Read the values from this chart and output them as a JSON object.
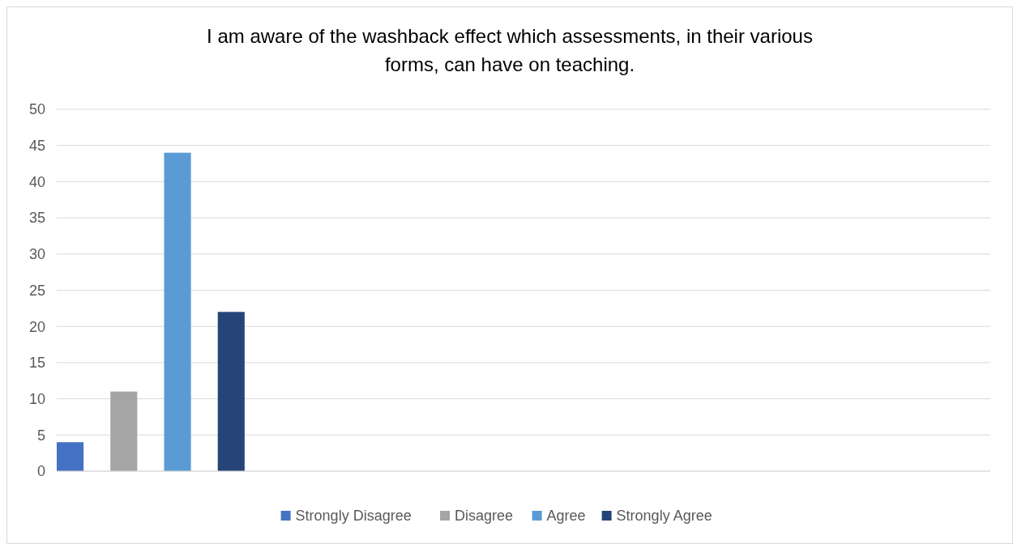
{
  "chart_data": {
    "type": "bar",
    "title": "I am aware of the washback effect which assessments, in their various forms, can have on teaching.",
    "categories": [
      null,
      null,
      null,
      null
    ],
    "series": [
      {
        "name": "Strongly Disagree",
        "color": "#4472c4",
        "values": [
          4,
          null,
          null,
          null
        ]
      },
      {
        "name": "Disagree",
        "color": "#a5a5a5",
        "values": [
          11,
          null,
          null,
          null
        ]
      },
      {
        "name": "Agree",
        "color": "#5b9bd5",
        "values": [
          44,
          null,
          null,
          null
        ]
      },
      {
        "name": "Strongly Agree",
        "color": "#264478",
        "values": [
          22,
          null,
          null,
          null
        ]
      }
    ],
    "ylim": [
      0,
      50
    ],
    "yticks": [
      0,
      5,
      10,
      15,
      20,
      25,
      30,
      35,
      40,
      45,
      50
    ],
    "grid": "y",
    "legend": "bottom"
  }
}
